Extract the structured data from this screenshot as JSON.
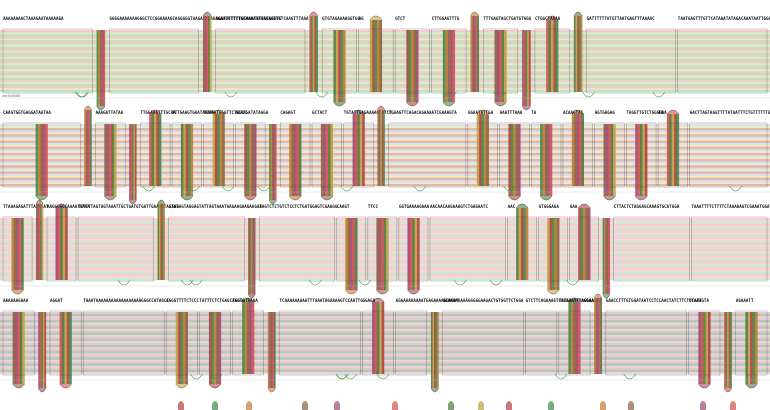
{
  "graph": {
    "palette": [
      "#e8a0a0",
      "#a8d8a8",
      "#f0c890",
      "#b8c8e8",
      "#e0b0d8",
      "#c8e0a0",
      "#f4a8b8",
      "#a0d0c8",
      "#f0d8a0",
      "#d0a0a0",
      "#98c898",
      "#e8c0c0",
      "#b0b8d8",
      "#c88060",
      "#70a870"
    ],
    "strong_colors": [
      "#b04040",
      "#40884a",
      "#c07a30",
      "#8a6040",
      "#a04870",
      "#d05050",
      "#507840",
      "#c0a040"
    ],
    "rows": [
      {
        "coordinates": [
          "chr4:0000",
          "",
          "",
          "",
          "",
          "",
          "",
          "",
          "",
          "",
          "",
          "",
          "",
          "",
          ""
        ],
        "nodes": [
          {
            "label": "AAAAAAAACTAAAGAATAAAAAGA",
            "long": true
          },
          {
            "label": "",
            "kind": "down"
          },
          {
            "label": "GGGGAAAAAAAGGGCTCCGGAAAAGCAGGGGGTAAGAAAAAAAGAAGGTTTTGGAAAAGAGAAAATTGTCAAGTTTAAA",
            "long": true
          },
          {
            "label": "",
            "kind": "up"
          },
          {
            "label": "AGATTTTTTTGTAAATTTTATAGATC",
            "long": true
          },
          {
            "label": "",
            "kind": "up"
          },
          {
            "label": "GTGTAGAAAAGGTGG",
            "long": false
          },
          {
            "label": "AG",
            "long": false
          },
          {
            "label": "GTCT",
            "long": false
          },
          {
            "label": "CTTGGAGTTTG",
            "long": false
          },
          {
            "label": "",
            "kind": "up"
          },
          {
            "label": "TTTGAGTAGCTGATGTGGG",
            "long": false
          },
          {
            "label": "",
            "kind": "down"
          },
          {
            "label": "CTGGCTAAAA",
            "long": false
          },
          {
            "label": "",
            "kind": "up"
          },
          {
            "label": "GATTTTTTATGTTAATGAGTTTAAAAC",
            "long": true
          },
          {
            "label": "TAATGAGTTTGTTCATAAATATAGACAAATAATTGGAATAGTTCTTAAA",
            "long": true
          }
        ]
      },
      {
        "coordinates": [
          "",
          "",
          "",
          "",
          "",
          "",
          "",
          "",
          "",
          "",
          "",
          "",
          "",
          ""
        ],
        "nodes": [
          {
            "label": "CAAGTGGTGAGGATAATAA",
            "long": true
          },
          {
            "label": "",
            "kind": "up"
          },
          {
            "label": "AAAGATTATAA",
            "long": false
          },
          {
            "label": "",
            "kind": "down"
          },
          {
            "label": "TTGGAAGTTTGCAA",
            "long": false
          },
          {
            "label": "TTTGAAGTGAATAAAAG",
            "long": false
          },
          {
            "label": "TGTAATGGGTTCTGGCC",
            "long": false
          },
          {
            "label": "GCAAGATATAGGA",
            "long": false
          },
          {
            "label": "",
            "kind": "down"
          },
          {
            "label": "CAGAGT",
            "long": false
          },
          {
            "label": "GCTACT",
            "long": false
          },
          {
            "label": "TGTATTGAGAAAAGTATCT",
            "long": false
          },
          {
            "label": "",
            "kind": "up"
          },
          {
            "label": "TGAAGTTCAGACAGAAAATCGAAAGTA",
            "long": true
          },
          {
            "label": "GGAATATTGA",
            "long": false
          },
          {
            "label": "AAATTTAAA",
            "long": false
          },
          {
            "label": "TA",
            "long": false
          },
          {
            "label": "ACAAGTAC",
            "long": false
          },
          {
            "label": "AGTGAGAG",
            "long": false
          },
          {
            "label": "TAGGTTGTCTGGGGAA",
            "long": false
          },
          {
            "label": "TA",
            "long": false
          },
          {
            "label": "GACTTAGTAGGTTTTATAATTTCTGTTTTTTGGTA",
            "long": true
          }
        ]
      },
      {
        "coordinates": [
          "",
          "",
          "",
          "",
          "",
          "",
          "",
          "",
          "",
          "",
          "",
          "",
          "",
          "",
          ""
        ],
        "nodes": [
          {
            "label": "TTAAAGAGATTTATAAAT",
            "long": false
          },
          {
            "label": "",
            "kind": "up"
          },
          {
            "label": "AAGGGGGCAAAATGAGA",
            "long": false
          },
          {
            "label": "TTTTTTAGTAGTAAATTGCTGATGTGATTGAAAGTAGAAG",
            "long": true
          },
          {
            "label": "",
            "kind": "up"
          },
          {
            "label": "GTGTAGTAGGAGTATTAGTAAATAAGAAGAAGAAGAA",
            "long": true
          },
          {
            "label": "",
            "kind": "down"
          },
          {
            "label": "TAGTCTCTGTCTCCTCTGATGGAGTCGAAGG",
            "long": true
          },
          {
            "label": "CAAGT",
            "long": false
          },
          {
            "label": "TTCC",
            "long": false
          },
          {
            "label": "GGTGAAAAGAAA",
            "long": false
          },
          {
            "label": "AACAACAAGAAAGTCTGAGAATC",
            "long": true
          },
          {
            "label": "AAC",
            "long": false
          },
          {
            "label": "GTGGGAGA",
            "long": false
          },
          {
            "label": "GAA",
            "long": false
          },
          {
            "label": "",
            "kind": "down"
          },
          {
            "label": "CTTACTCTAGGAGCAAAGTGCATGGA",
            "long": true
          },
          {
            "label": "TAAATTTTCTTTTCTAAAAAGTCGAAATGGATAAAAAGTAGAGAAAAATGA",
            "long": true
          }
        ]
      },
      {
        "coordinates": [
          "",
          "",
          "",
          "",
          "",
          "",
          "",
          "",
          "",
          "",
          "",
          "",
          "",
          ""
        ],
        "nodes": [
          {
            "label": "AAAAAAGAAA",
            "long": false
          },
          {
            "label": "",
            "kind": "down"
          },
          {
            "label": "AGGAT",
            "long": false
          },
          {
            "label": "TAAATAAAAAAAAAAAAAAAAAAGGGCCATAGCC",
            "long": true
          },
          {
            "label": "AGGGTTTTCTCCC",
            "long": false
          },
          {
            "label": "TATTTCTCTGAGCAGCTC",
            "long": false
          },
          {
            "label": "TGGGGTAAAA",
            "long": false
          },
          {
            "label": "",
            "kind": "down"
          },
          {
            "label": "TCAAAAAAAAATTTAAATAGAAAAGTCCAATTG",
            "long": true
          },
          {
            "label": "GGAGA",
            "long": false
          },
          {
            "label": "AGGAAAAAAAATGAGAAAAGGAGAT",
            "long": false
          },
          {
            "label": "",
            "kind": "down"
          },
          {
            "label": "GCAAAAAAAAGGGGGAAGACTGTGGTTCTGGA",
            "long": true
          },
          {
            "label": "GTCTTCAGAAAGTCCCAAAAATAGGGA",
            "long": false
          },
          {
            "label": "TATGAATTTAGGAAGTA",
            "long": false
          },
          {
            "label": "",
            "kind": "up"
          },
          {
            "label": "GAACCTTTGTGGATAATCCTCCAACTATCTTCTTTATT",
            "long": true
          },
          {
            "label": "CCAAAGTA",
            "long": false
          },
          {
            "label": "",
            "kind": "down"
          },
          {
            "label": "AGAAATT",
            "long": false
          }
        ]
      },
      {
        "coordinates": [],
        "nodes": []
      }
    ]
  }
}
